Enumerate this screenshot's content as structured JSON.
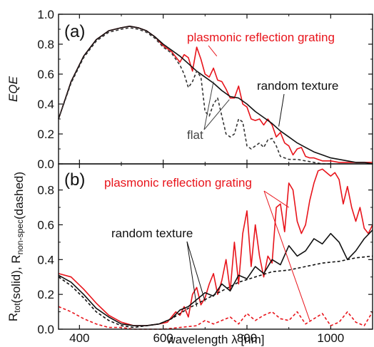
{
  "chart_data": [
    {
      "type": "line",
      "panel_label": "(a)",
      "ylabel": "EQE",
      "xlim": [
        350,
        1100
      ],
      "ylim": [
        0.0,
        1.0
      ],
      "yticks": [
        "0.0",
        "0.2",
        "0.4",
        "0.6",
        "0.8",
        "1.0"
      ],
      "annotations": [
        {
          "text": "plasmonic reflection grating",
          "color": "#e8141b",
          "target": [
            728,
            0.72
          ]
        },
        {
          "text": "random texture",
          "color": "#111111",
          "target": [
            876,
            0.25
          ]
        },
        {
          "text": "flat",
          "color": "#444444",
          "targets": [
            [
              720,
              0.55
            ],
            [
              758,
              0.43
            ]
          ]
        }
      ],
      "series": [
        {
          "name": "plasmonic reflection grating",
          "color": "#e8141b",
          "style": "solid",
          "x": [
            350,
            380,
            410,
            440,
            470,
            500,
            520,
            540,
            560,
            580,
            600,
            620,
            640,
            650,
            660,
            670,
            680,
            690,
            700,
            710,
            720,
            730,
            740,
            750,
            760,
            770,
            780,
            790,
            800,
            810,
            820,
            830,
            840,
            850,
            860,
            870,
            880,
            890,
            900,
            910,
            920,
            930,
            940,
            950,
            960,
            970,
            980,
            1000,
            1020,
            1040,
            1060,
            1080,
            1100
          ],
          "y": [
            0.3,
            0.55,
            0.72,
            0.83,
            0.89,
            0.91,
            0.92,
            0.91,
            0.89,
            0.85,
            0.79,
            0.75,
            0.68,
            0.73,
            0.71,
            0.62,
            0.78,
            0.7,
            0.6,
            0.58,
            0.64,
            0.56,
            0.55,
            0.5,
            0.44,
            0.44,
            0.52,
            0.4,
            0.38,
            0.3,
            0.29,
            0.3,
            0.26,
            0.3,
            0.26,
            0.18,
            0.21,
            0.14,
            0.12,
            0.06,
            0.1,
            0.11,
            0.05,
            0.04,
            0.04,
            0.03,
            0.02,
            0.02,
            0.01,
            0.01,
            0.01,
            0.01,
            0.01
          ]
        },
        {
          "name": "random texture",
          "color": "#111111",
          "style": "solid",
          "x": [
            350,
            380,
            410,
            440,
            470,
            500,
            520,
            540,
            560,
            580,
            600,
            620,
            640,
            660,
            680,
            700,
            720,
            740,
            760,
            780,
            800,
            820,
            840,
            860,
            880,
            900,
            920,
            940,
            960,
            980,
            1000,
            1020,
            1040,
            1060,
            1080,
            1100
          ],
          "y": [
            0.3,
            0.55,
            0.72,
            0.83,
            0.89,
            0.91,
            0.92,
            0.91,
            0.89,
            0.85,
            0.8,
            0.76,
            0.72,
            0.67,
            0.62,
            0.58,
            0.54,
            0.49,
            0.45,
            0.44,
            0.4,
            0.35,
            0.31,
            0.27,
            0.22,
            0.18,
            0.14,
            0.11,
            0.08,
            0.06,
            0.04,
            0.03,
            0.02,
            0.01,
            0.01,
            0.0
          ]
        },
        {
          "name": "flat",
          "color": "#333333",
          "style": "dashed",
          "x": [
            350,
            380,
            410,
            440,
            470,
            500,
            520,
            540,
            560,
            580,
            600,
            620,
            640,
            650,
            660,
            670,
            680,
            690,
            700,
            710,
            720,
            730,
            740,
            750,
            760,
            770,
            780,
            790,
            800,
            810,
            820,
            830,
            840,
            850,
            860,
            870,
            880,
            890,
            900,
            920,
            940,
            960,
            980,
            1000
          ],
          "y": [
            0.3,
            0.54,
            0.71,
            0.82,
            0.88,
            0.9,
            0.91,
            0.9,
            0.88,
            0.84,
            0.78,
            0.74,
            0.66,
            0.6,
            0.51,
            0.55,
            0.62,
            0.58,
            0.35,
            0.32,
            0.4,
            0.44,
            0.32,
            0.2,
            0.18,
            0.2,
            0.3,
            0.28,
            0.12,
            0.1,
            0.12,
            0.14,
            0.11,
            0.16,
            0.17,
            0.12,
            0.05,
            0.04,
            0.03,
            0.03,
            0.02,
            0.01,
            0.0,
            0.0
          ]
        }
      ]
    },
    {
      "type": "line",
      "panel_label": "(b)",
      "xlabel": "wavelength λ [nm]",
      "ylabel": "R_tot(solid), R_non-spec(dashed)",
      "xlim": [
        350,
        1100
      ],
      "ylim": [
        0.0,
        0.95
      ],
      "xticks": [
        "400",
        "600",
        "800",
        "1000"
      ],
      "yticks": [
        "0.0",
        "0.2",
        "0.4",
        "0.6",
        "0.8"
      ],
      "annotations": [
        {
          "text": "plasmonic reflection grating",
          "color": "#e8141b",
          "targets": [
            [
              900,
              0.7
            ],
            [
              950,
              0.05
            ]
          ]
        },
        {
          "text": "random texture",
          "color": "#111111",
          "targets": [
            [
              680,
              0.13
            ],
            [
              700,
              0.16
            ]
          ]
        }
      ],
      "series": [
        {
          "name": "plasmonic reflection grating",
          "color": "#e8141b",
          "style": "solid",
          "x": [
            350,
            380,
            410,
            440,
            470,
            500,
            530,
            560,
            590,
            610,
            620,
            630,
            640,
            650,
            660,
            670,
            680,
            690,
            700,
            710,
            720,
            730,
            740,
            750,
            760,
            770,
            780,
            790,
            800,
            810,
            820,
            830,
            840,
            850,
            860,
            870,
            880,
            890,
            900,
            910,
            920,
            930,
            940,
            950,
            960,
            970,
            980,
            990,
            1000,
            1010,
            1020,
            1030,
            1040,
            1050,
            1060,
            1070,
            1080,
            1090,
            1100
          ],
          "y": [
            0.32,
            0.3,
            0.23,
            0.15,
            0.08,
            0.04,
            0.02,
            0.02,
            0.03,
            0.04,
            0.07,
            0.1,
            0.08,
            0.13,
            0.07,
            0.2,
            0.24,
            0.14,
            0.18,
            0.26,
            0.32,
            0.2,
            0.28,
            0.4,
            0.22,
            0.5,
            0.26,
            0.55,
            0.68,
            0.36,
            0.6,
            0.42,
            0.3,
            0.42,
            0.38,
            0.7,
            0.72,
            0.56,
            0.84,
            0.8,
            0.62,
            0.55,
            0.6,
            0.74,
            0.84,
            0.91,
            0.92,
            0.9,
            0.88,
            0.9,
            0.86,
            0.72,
            0.82,
            0.7,
            0.62,
            0.7,
            0.58,
            0.55,
            0.6
          ]
        },
        {
          "name": "random texture",
          "color": "#111111",
          "style": "solid",
          "x": [
            350,
            380,
            410,
            440,
            470,
            500,
            530,
            560,
            590,
            620,
            640,
            660,
            680,
            700,
            720,
            740,
            760,
            780,
            800,
            820,
            840,
            860,
            880,
            900,
            920,
            940,
            960,
            980,
            1000,
            1020,
            1040,
            1060,
            1080,
            1100
          ],
          "y": [
            0.31,
            0.27,
            0.2,
            0.12,
            0.07,
            0.03,
            0.02,
            0.02,
            0.03,
            0.06,
            0.11,
            0.13,
            0.17,
            0.21,
            0.19,
            0.26,
            0.22,
            0.31,
            0.29,
            0.36,
            0.32,
            0.4,
            0.37,
            0.48,
            0.42,
            0.45,
            0.52,
            0.49,
            0.55,
            0.5,
            0.4,
            0.45,
            0.52,
            0.57
          ]
        },
        {
          "name": "random texture (non-spec)",
          "color": "#111111",
          "style": "dashed",
          "x": [
            350,
            380,
            410,
            440,
            470,
            500,
            530,
            560,
            590,
            620,
            660,
            700,
            740,
            780,
            820,
            860,
            900,
            940,
            980,
            1020,
            1060,
            1100
          ],
          "y": [
            0.3,
            0.25,
            0.18,
            0.1,
            0.05,
            0.02,
            0.01,
            0.02,
            0.03,
            0.06,
            0.12,
            0.17,
            0.22,
            0.27,
            0.3,
            0.33,
            0.34,
            0.36,
            0.38,
            0.39,
            0.41,
            0.42
          ]
        },
        {
          "name": "plasmonic reflection grating (non-spec)",
          "color": "#e8141b",
          "style": "dashed",
          "x": [
            350,
            380,
            410,
            440,
            470,
            500,
            530,
            560,
            600,
            640,
            680,
            700,
            720,
            740,
            760,
            780,
            800,
            820,
            840,
            860,
            880,
            900,
            920,
            940,
            960,
            980,
            1000,
            1020,
            1040,
            1060,
            1080,
            1100
          ],
          "y": [
            0.13,
            0.1,
            0.06,
            0.03,
            0.01,
            0.01,
            0.0,
            0.0,
            0.0,
            0.01,
            0.02,
            0.05,
            0.03,
            0.05,
            0.07,
            0.03,
            0.09,
            0.05,
            0.08,
            0.1,
            0.06,
            0.05,
            0.1,
            0.03,
            0.06,
            0.09,
            0.02,
            0.04,
            0.1,
            0.04,
            0.02,
            0.1
          ]
        }
      ]
    }
  ]
}
